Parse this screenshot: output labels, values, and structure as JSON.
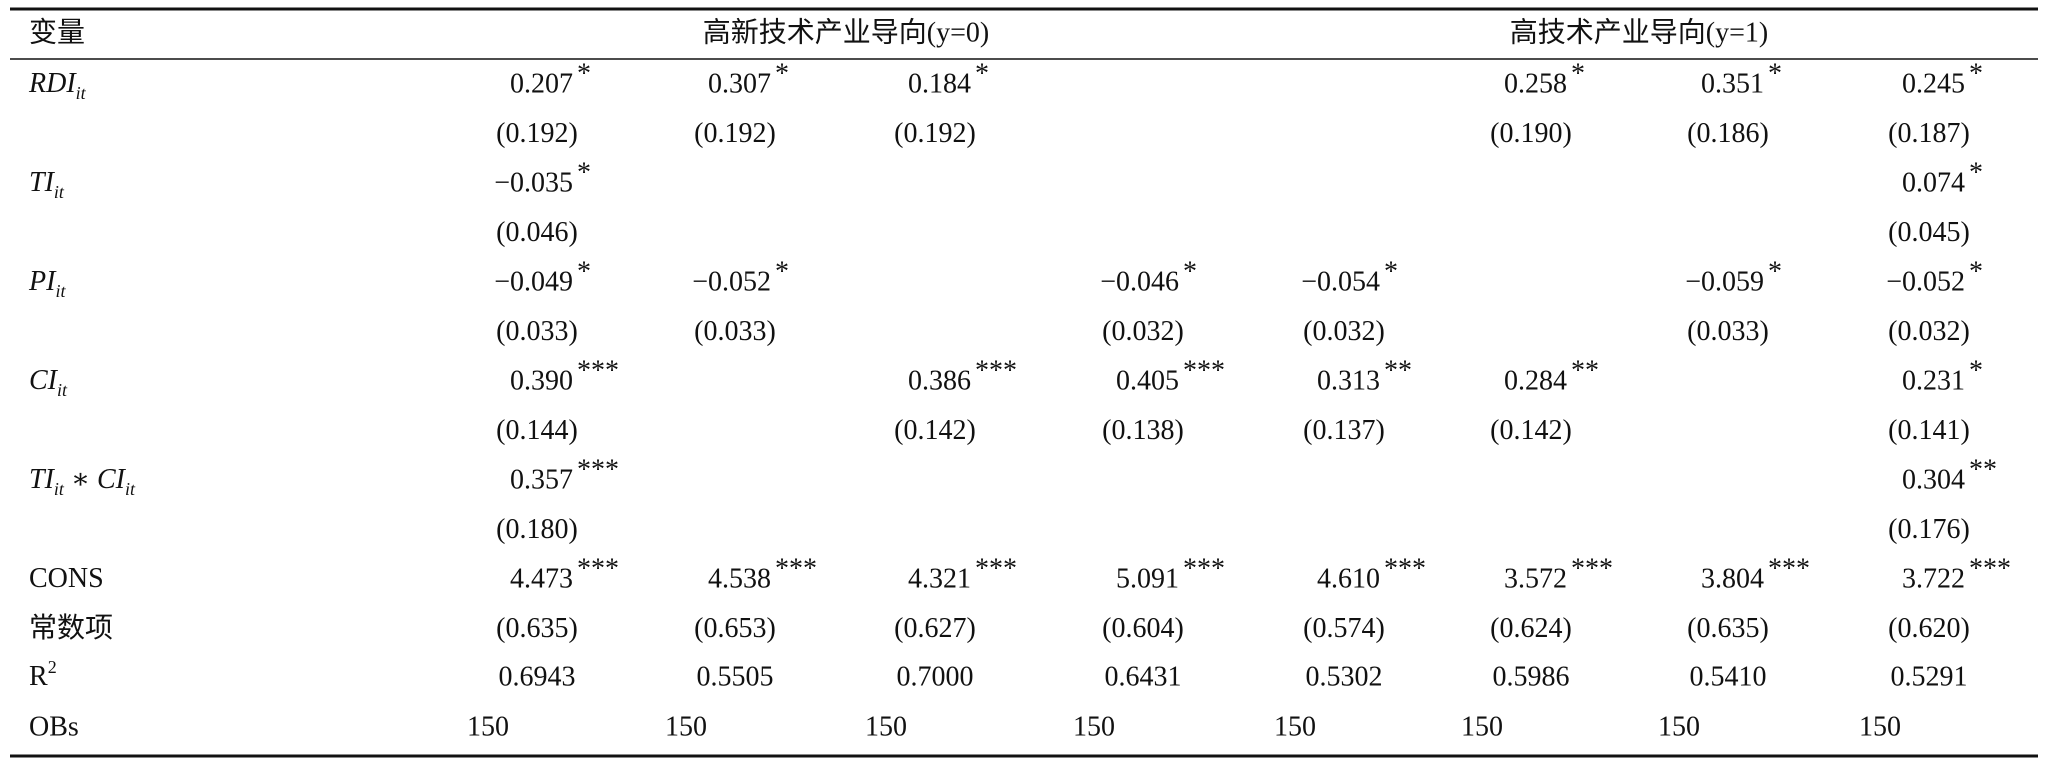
{
  "header": {
    "label": "变量",
    "groups": [
      "高新技术产业导向(y=0)",
      "高技术产业导向(y=1)"
    ]
  },
  "rows": [
    {
      "label": [
        {
          "t": "RDI",
          "italic": true
        },
        {
          "t": "it",
          "sub": true,
          "italic": true
        }
      ],
      "coef": [
        [
          "0.207",
          "*"
        ],
        [
          "0.307",
          "*"
        ],
        [
          "0.184",
          "*"
        ],
        null,
        null,
        [
          "0.258",
          "*"
        ],
        [
          "0.351",
          "*"
        ],
        [
          "0.245",
          "*"
        ]
      ],
      "se": [
        "(0.192)",
        "(0.192)",
        "(0.192)",
        null,
        null,
        "(0.190)",
        "(0.186)",
        "(0.187)"
      ]
    },
    {
      "label": [
        {
          "t": "TI",
          "italic": true
        },
        {
          "t": "it",
          "sub": true,
          "italic": true
        }
      ],
      "coef": [
        [
          "−0.035",
          "*"
        ],
        null,
        null,
        null,
        null,
        null,
        null,
        [
          "0.074",
          "*"
        ]
      ],
      "se": [
        "(0.046)",
        null,
        null,
        null,
        null,
        null,
        null,
        "(0.045)"
      ]
    },
    {
      "label": [
        {
          "t": "PI",
          "italic": true
        },
        {
          "t": "it",
          "sub": true,
          "italic": true
        }
      ],
      "coef": [
        [
          "−0.049",
          "*"
        ],
        [
          "−0.052",
          "*"
        ],
        null,
        [
          "−0.046",
          "*"
        ],
        [
          "−0.054",
          "*"
        ],
        null,
        [
          "−0.059",
          "*"
        ],
        [
          "−0.052",
          "*"
        ]
      ],
      "se": [
        "(0.033)",
        "(0.033)",
        null,
        "(0.032)",
        "(0.032)",
        null,
        "(0.033)",
        "(0.032)"
      ]
    },
    {
      "label": [
        {
          "t": "CI",
          "italic": true
        },
        {
          "t": "it",
          "sub": true,
          "italic": true
        }
      ],
      "coef": [
        [
          "0.390",
          "***"
        ],
        null,
        [
          "0.386",
          "***"
        ],
        [
          "0.405",
          "***"
        ],
        [
          "0.313",
          "**"
        ],
        [
          "0.284",
          "**"
        ],
        null,
        [
          "0.231",
          "*"
        ]
      ],
      "se": [
        "(0.144)",
        null,
        "(0.142)",
        "(0.138)",
        "(0.137)",
        "(0.142)",
        null,
        "(0.141)"
      ]
    },
    {
      "label": [
        {
          "t": "TI",
          "italic": true
        },
        {
          "t": "it",
          "sub": true,
          "italic": true
        },
        {
          "t": " ∗ "
        },
        {
          "t": "CI",
          "italic": true
        },
        {
          "t": "it",
          "sub": true,
          "italic": true
        }
      ],
      "coef": [
        [
          "0.357",
          "***"
        ],
        null,
        null,
        null,
        null,
        null,
        null,
        [
          "0.304",
          "**"
        ]
      ],
      "se": [
        "(0.180)",
        null,
        null,
        null,
        null,
        null,
        null,
        "(0.176)"
      ]
    },
    {
      "label": [
        {
          "t": "CONS"
        }
      ],
      "se_label": "常数项",
      "coef": [
        [
          "4.473",
          "***"
        ],
        [
          "4.538",
          "***"
        ],
        [
          "4.321",
          "***"
        ],
        [
          "5.091",
          "***"
        ],
        [
          "4.610",
          "***"
        ],
        [
          "3.572",
          "***"
        ],
        [
          "3.804",
          "***"
        ],
        [
          "3.722",
          "***"
        ]
      ],
      "se": [
        "(0.635)",
        "(0.653)",
        "(0.627)",
        "(0.604)",
        "(0.574)",
        "(0.624)",
        "(0.635)",
        "(0.620)"
      ]
    }
  ],
  "r2": {
    "label": [
      {
        "t": "R"
      },
      {
        "t": "2",
        "sup": true
      }
    ],
    "values": [
      "0.6943",
      "0.5505",
      "0.7000",
      "0.6431",
      "0.5302",
      "0.5986",
      "0.5410",
      "0.5291"
    ]
  },
  "obs": {
    "label": "OBs",
    "values": [
      "150",
      "150",
      "150",
      "150",
      "150",
      "150",
      "150",
      "150"
    ]
  }
}
